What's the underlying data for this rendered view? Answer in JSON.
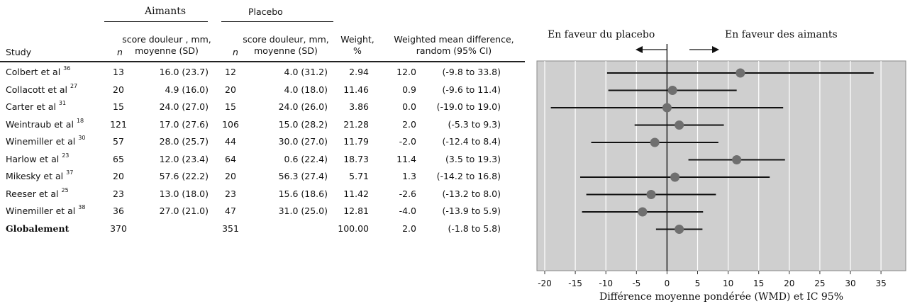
{
  "table": {
    "group_aimants": "Aimants",
    "group_placebo": "Placebo",
    "col_study": "Study",
    "col_n": "n",
    "col_score_aimants_l1": "score douleur , mm,",
    "col_score_aimants_l2": "moyenne (SD)",
    "col_score_placebo_l1": "score douleur, mm,",
    "col_score_placebo_l2": "moyenne (SD)",
    "col_weight_l1": "Weight,",
    "col_weight_l2": "%",
    "col_wmd_l1": "Weighted mean difference,",
    "col_wmd_l2": "random (95% CI)",
    "rows": [
      {
        "study": "Colbert et al",
        "ref": "36",
        "n1": "13",
        "s1": "16.0 (23.7)",
        "n2": "12",
        "s2": "4.0 (31.2)",
        "weight": "2.94",
        "wmd": "12.0",
        "ci": "(-9.8 to 33.8)"
      },
      {
        "study": "Collacott et al",
        "ref": "27",
        "n1": "20",
        "s1": "4.9 (16.0)",
        "n2": "20",
        "s2": "4.0 (18.0)",
        "weight": "11.46",
        "wmd": "0.9",
        "ci": "(-9.6 to 11.4)"
      },
      {
        "study": "Carter et al",
        "ref": "31",
        "n1": "15",
        "s1": "24.0 (27.0)",
        "n2": "15",
        "s2": "24.0 (26.0)",
        "weight": "3.86",
        "wmd": "0.0",
        "ci": "(-19.0 to 19.0)"
      },
      {
        "study": "Weintraub et al",
        "ref": "18",
        "n1": "121",
        "s1": "17.0 (27.6)",
        "n2": "106",
        "s2": "15.0 (28.2)",
        "weight": "21.28",
        "wmd": "2.0",
        "ci": "(-5.3 to 9.3)"
      },
      {
        "study": "Winemiller et al",
        "ref": "30",
        "n1": "57",
        "s1": "28.0 (25.7)",
        "n2": "44",
        "s2": "30.0 (27.0)",
        "weight": "11.79",
        "wmd": "-2.0",
        "ci": "(-12.4 to 8.4)"
      },
      {
        "study": "Harlow et al",
        "ref": "23",
        "n1": "65",
        "s1": "12.0 (23.4)",
        "n2": "64",
        "s2": "0.6 (22.4)",
        "weight": "18.73",
        "wmd": "11.4",
        "ci": "(3.5 to 19.3)"
      },
      {
        "study": "Mikesky et al",
        "ref": "37",
        "n1": "20",
        "s1": "57.6 (22.2)",
        "n2": "20",
        "s2": "56.3 (27.4)",
        "weight": "5.71",
        "wmd": "1.3",
        "ci": "(-14.2 to 16.8)"
      },
      {
        "study": "Reeser et al",
        "ref": "25",
        "n1": "23",
        "s1": "13.0 (18.0)",
        "n2": "23",
        "s2": "15.6 (18.6)",
        "weight": "11.42",
        "wmd": "-2.6",
        "ci": "(-13.2 to 8.0)"
      },
      {
        "study": "Winemiller et al",
        "ref": "38",
        "n1": "36",
        "s1": "27.0 (21.0)",
        "n2": "47",
        "s2": "31.0 (25.0)",
        "weight": "12.81",
        "wmd": "-4.0",
        "ci": "(-13.9 to 5.9)"
      }
    ],
    "overall": {
      "study": "Globalement",
      "n1": "370",
      "n2": "351",
      "weight": "100.00",
      "wmd": "2.0",
      "ci": "(-1.8 to 5.8)"
    }
  },
  "chart_data": {
    "type": "forest",
    "label_left": "En faveur du placebo",
    "label_right": "En faveur des aimants",
    "xlabel": "Différence moyenne pondérée (WMD) et IC 95%",
    "xlim": [
      -22,
      35
    ],
    "xticks": [
      -20,
      -15,
      -10,
      -5,
      0,
      5,
      10,
      15,
      20,
      25,
      30,
      35
    ],
    "grid": true,
    "background": "#cfcfcf",
    "point_color": "#6f6f6f",
    "points": [
      {
        "est": 12.0,
        "lo": -9.8,
        "hi": 33.8
      },
      {
        "est": 0.9,
        "lo": -9.6,
        "hi": 11.4
      },
      {
        "est": 0.0,
        "lo": -19.0,
        "hi": 19.0
      },
      {
        "est": 2.0,
        "lo": -5.3,
        "hi": 9.3
      },
      {
        "est": -2.0,
        "lo": -12.4,
        "hi": 8.4
      },
      {
        "est": 11.4,
        "lo": 3.5,
        "hi": 19.3
      },
      {
        "est": 1.3,
        "lo": -14.2,
        "hi": 16.8
      },
      {
        "est": -2.6,
        "lo": -13.2,
        "hi": 8.0
      },
      {
        "est": -4.0,
        "lo": -13.9,
        "hi": 5.9
      },
      {
        "est": 2.0,
        "lo": -1.8,
        "hi": 5.8
      }
    ]
  }
}
